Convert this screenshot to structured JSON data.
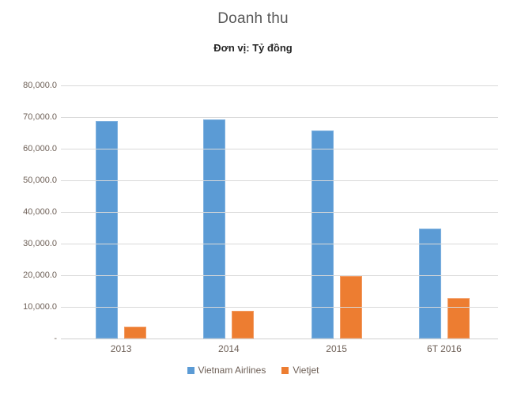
{
  "chart": {
    "title": "Doanh thu",
    "subtitle": "Đơn vị: Tỷ đồng"
  },
  "colors": {
    "title_text": "#595959",
    "subtitle_text": "#262626",
    "axis_text": "#6e6057",
    "gridline": "#d9d9d9",
    "vietnam_airlines_blue": "#5B9BD5",
    "vietjet_orange": "#ED7D31"
  },
  "chart_data": {
    "type": "bar",
    "title": "Doanh thu",
    "subtitle": "Đơn vị: Tỷ đồng",
    "categories": [
      "2013",
      "2014",
      "2015",
      "6T 2016"
    ],
    "series": [
      {
        "name": "Vietnam Airlines",
        "color": "#5B9BD5",
        "border_color": "#7EB1DF",
        "values": [
          68800,
          69200,
          65800,
          34800
        ]
      },
      {
        "name": "Vietjet",
        "color": "#ED7D31",
        "border_color": "#F29B62",
        "values": [
          3800,
          8700,
          19800,
          12700
        ]
      }
    ],
    "xlabel": "",
    "ylabel": "",
    "ylim": [
      0,
      80000
    ],
    "yticks": [
      {
        "value": 0,
        "label": "-"
      },
      {
        "value": 10000,
        "label": "10,000.0"
      },
      {
        "value": 20000,
        "label": "20,000.0"
      },
      {
        "value": 30000,
        "label": "30,000.0"
      },
      {
        "value": 40000,
        "label": "40,000.0"
      },
      {
        "value": 50000,
        "label": "50,000.0"
      },
      {
        "value": 60000,
        "label": "60,000.0"
      },
      {
        "value": 70000,
        "label": "70,000.0"
      },
      {
        "value": 80000,
        "label": "80,000.0"
      }
    ],
    "grid": true,
    "legend_position": "bottom"
  }
}
